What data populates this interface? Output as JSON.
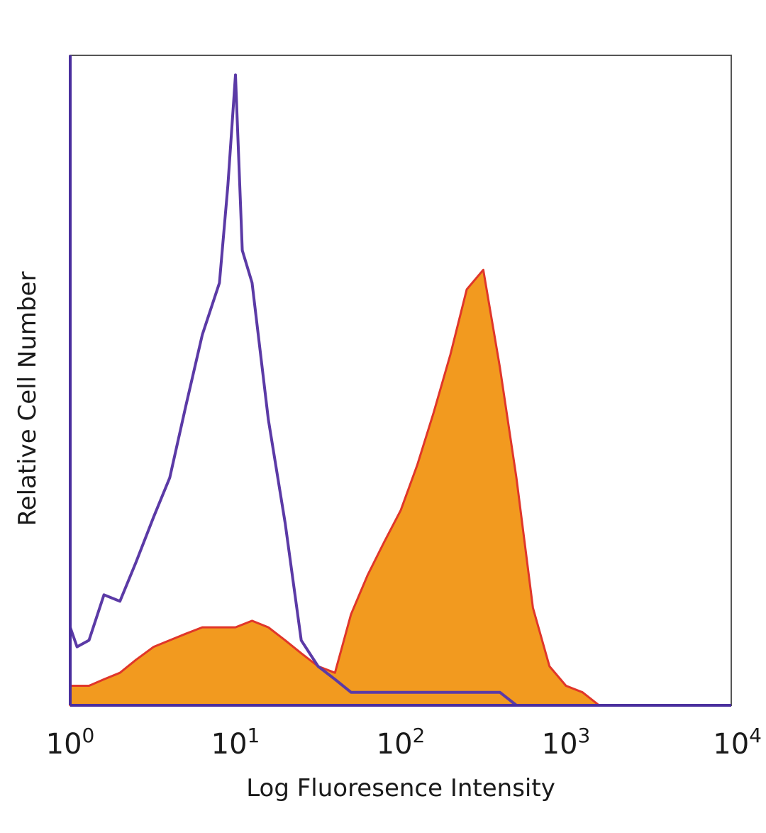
{
  "chart_data": {
    "type": "area",
    "title": "",
    "xlabel": "Log Fluoresence Intensity",
    "ylabel": "Relative Cell Number",
    "x_scale": "log10",
    "xlim": [
      1,
      10000
    ],
    "ylim": [
      0,
      1
    ],
    "grid": false,
    "x_ticks": [
      {
        "value": 1,
        "base": "10",
        "exp": "0"
      },
      {
        "value": 10,
        "base": "10",
        "exp": "1"
      },
      {
        "value": 100,
        "base": "10",
        "exp": "2"
      },
      {
        "value": 1000,
        "base": "10",
        "exp": "3"
      },
      {
        "value": 10000,
        "base": "10",
        "exp": "4"
      }
    ],
    "series": [
      {
        "style": "filled",
        "color": "#f29a1f",
        "edge_color": "#e0362a",
        "x": [
          1,
          1.3,
          1.6,
          2,
          2.5,
          3.2,
          4,
          5,
          6.3,
          8,
          10,
          12.6,
          15.8,
          20,
          25,
          31.6,
          40,
          50,
          63,
          79,
          100,
          126,
          158,
          200,
          251,
          316,
          398,
          501,
          631,
          794,
          1000,
          1259,
          1585
        ],
        "y": [
          0.03,
          0.03,
          0.04,
          0.05,
          0.07,
          0.09,
          0.1,
          0.11,
          0.12,
          0.12,
          0.12,
          0.13,
          0.12,
          0.1,
          0.08,
          0.06,
          0.05,
          0.14,
          0.2,
          0.25,
          0.3,
          0.37,
          0.45,
          0.54,
          0.64,
          0.67,
          0.52,
          0.35,
          0.15,
          0.06,
          0.03,
          0.02,
          0.0
        ]
      },
      {
        "style": "outline",
        "color": "#5b3aa6",
        "x": [
          1,
          1.1,
          1.3,
          1.6,
          2,
          2.5,
          3.2,
          4,
          5,
          6.3,
          8,
          9,
          10,
          11,
          12.6,
          15.8,
          20,
          25,
          31.6,
          40,
          50,
          63,
          79,
          100,
          126,
          158,
          200,
          251,
          316,
          398,
          501
        ],
        "y": [
          0.12,
          0.09,
          0.1,
          0.17,
          0.16,
          0.22,
          0.29,
          0.35,
          0.46,
          0.57,
          0.65,
          0.8,
          0.97,
          0.7,
          0.65,
          0.44,
          0.28,
          0.1,
          0.06,
          0.04,
          0.02,
          0.02,
          0.02,
          0.02,
          0.02,
          0.02,
          0.02,
          0.02,
          0.02,
          0.02,
          0.0
        ]
      }
    ]
  }
}
